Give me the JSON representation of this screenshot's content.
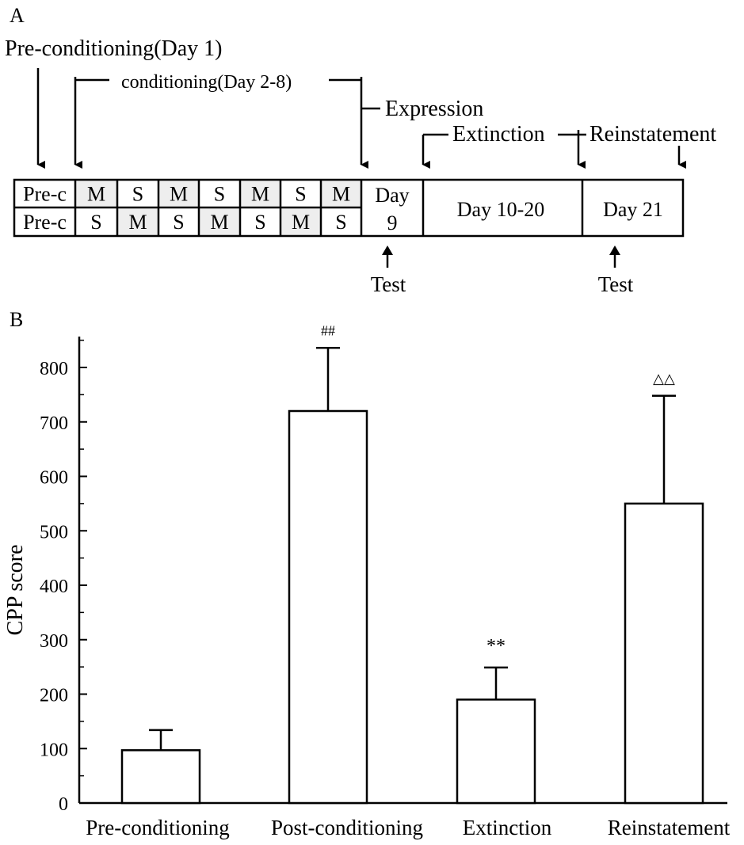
{
  "panelA": {
    "label": "A",
    "phases": {
      "preconditioning": "Pre-conditioning(Day 1)",
      "conditioning": "conditioning(Day 2-8)",
      "expression": "Expression",
      "extinction": "Extinction",
      "reinstatement": "Reinstatement"
    },
    "row1": [
      "Pre-c",
      "M",
      "S",
      "M",
      "S",
      "M",
      "S",
      "M"
    ],
    "row2": [
      "Pre-c",
      "S",
      "M",
      "S",
      "M",
      "S",
      "M",
      "S"
    ],
    "day9_line1": "Day",
    "day9_line2": "9",
    "day10_20": "Day 10-20",
    "day21": "Day 21",
    "tests": [
      "Test",
      "Test"
    ],
    "shade_color": "#eeeeee"
  },
  "panelB": {
    "label": "B"
  },
  "chart_data": {
    "type": "bar",
    "title": "",
    "xlabel": "",
    "ylabel": "CPP score",
    "ylim": [
      0,
      860
    ],
    "yticks": [
      0,
      100,
      200,
      300,
      400,
      500,
      600,
      700,
      800
    ],
    "categories": [
      "Pre-conditioning",
      "Post-conditioning",
      "Extinction",
      "Reinstatement"
    ],
    "values": [
      97,
      720,
      190,
      550
    ],
    "errors": [
      37,
      116,
      59,
      198
    ],
    "annotations": [
      "",
      "##",
      "**",
      "△△"
    ],
    "bar_fill": "#ffffff",
    "bar_stroke": "#000000",
    "grid": false
  }
}
